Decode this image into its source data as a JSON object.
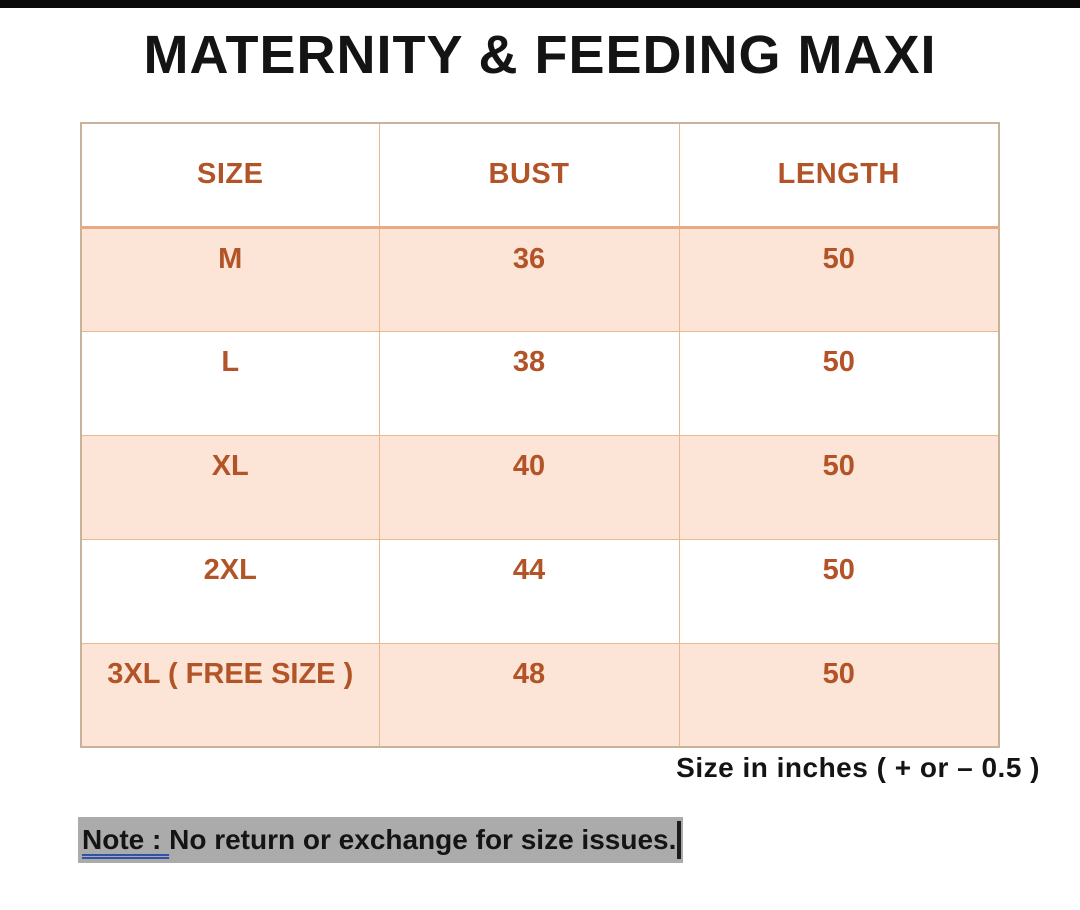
{
  "title": "MATERNITY & FEEDING MAXI",
  "table": {
    "columns": [
      "SIZE",
      "BUST",
      "LENGTH"
    ],
    "rows": [
      [
        "M",
        "36",
        "50"
      ],
      [
        "L",
        "38",
        "50"
      ],
      [
        "XL",
        "40",
        "50"
      ],
      [
        "2XL",
        "44",
        "50"
      ],
      [
        "3XL ( FREE SIZE )",
        "48",
        "50"
      ]
    ]
  },
  "caption": "Size in inches ( + or  – 0.5 )",
  "note": {
    "label": "Note : ",
    "text": "No return or exchange for size issues."
  },
  "colors": {
    "accent_text": "#b25427",
    "row_stripe": "#fce4d6",
    "grid_border": "#e9b88f",
    "note_highlight": "#ababab",
    "note_underline": "#3352a5",
    "top_strip": "#0a0a0a"
  }
}
